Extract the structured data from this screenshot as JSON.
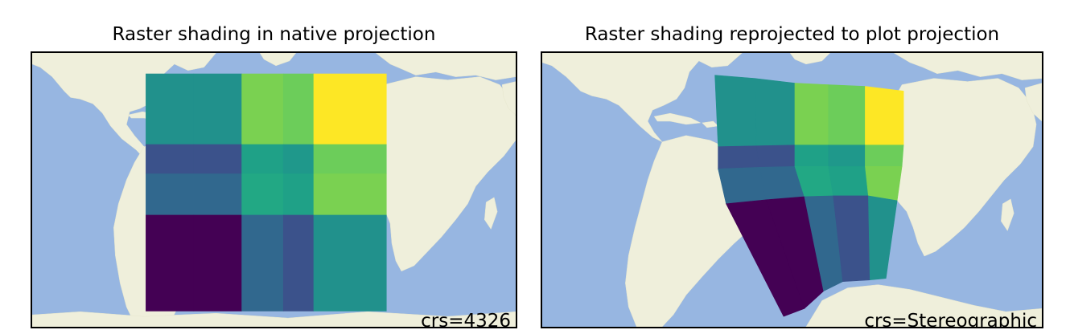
{
  "panels": [
    {
      "title": "Raster shading in native projection",
      "crs_label": "crs=4326"
    },
    {
      "title": "Raster shading reprojected to plot projection",
      "crs_label": "crs=Stereographic"
    }
  ],
  "colors": {
    "ocean": "#97b6e1",
    "land": "#efefdb",
    "border": "#000000"
  },
  "raster": {
    "colormap": "viridis",
    "rows": [
      [
        "#21918c",
        "#21918c",
        "#7ad151",
        "#6ccd5a",
        "#fde725"
      ],
      [
        "#3b528b",
        "#3b528b",
        "#1fa187",
        "#1f988b",
        "#6ccd5a"
      ],
      [
        "#31688e",
        "#31688e",
        "#22a884",
        "#1fa187",
        "#7ad151"
      ],
      [
        "#440154",
        "#440154",
        "#31688e",
        "#3b528b",
        "#21918c"
      ]
    ]
  }
}
